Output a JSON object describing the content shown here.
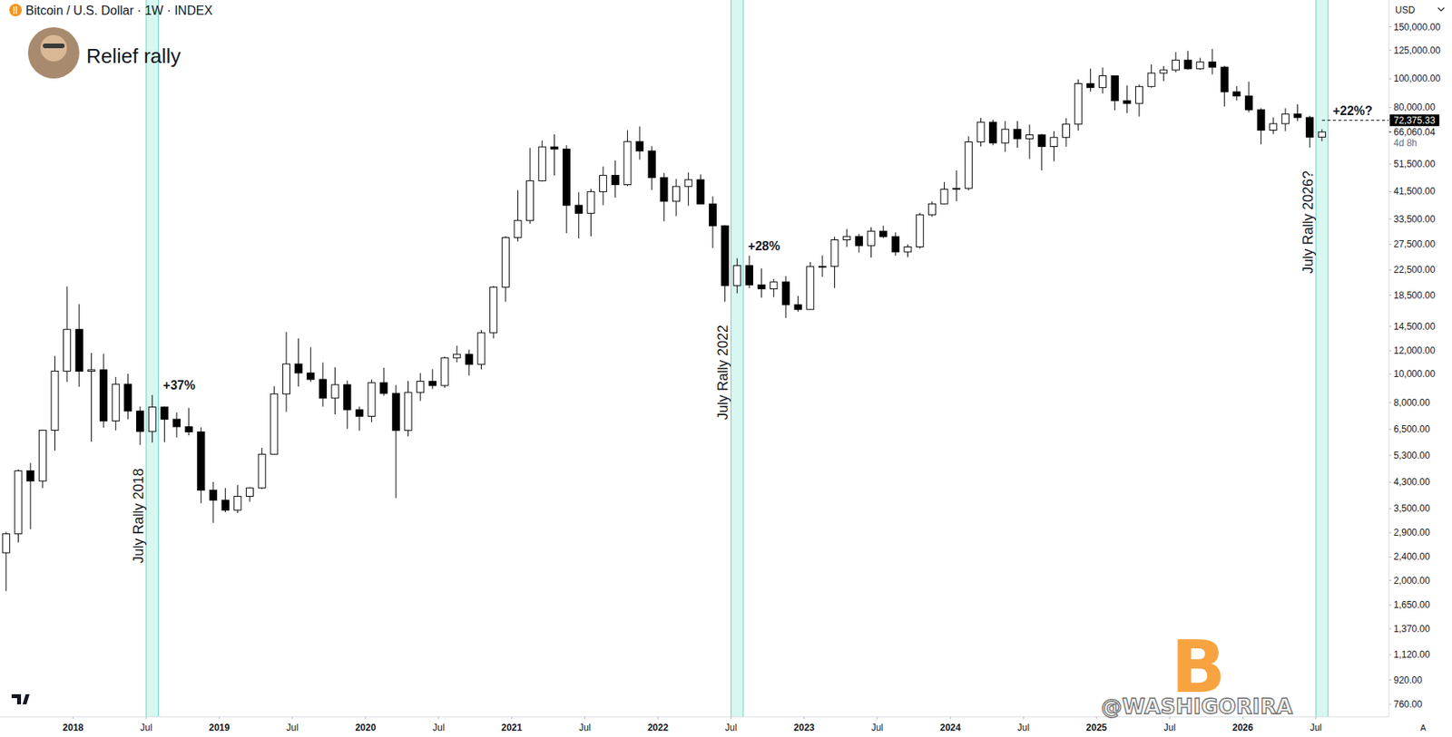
{
  "chart_data": {
    "type": "candlestick",
    "symbol": "Bitcoin / U.S. Dollar · 1W · INDEX",
    "title": "Relief rally",
    "currency": "USD",
    "watermark": "@WASHIGORIRA",
    "logo": "B",
    "scale_mode": "A",
    "log": "y",
    "grid": false,
    "x": [
      "2017-07",
      "2017-08",
      "2017-09",
      "2017-10",
      "2017-11",
      "2017-12",
      "2018-01",
      "2018-02",
      "2018-03",
      "2018-04",
      "2018-05",
      "2018-06",
      "2018-07",
      "2018-08",
      "2018-09",
      "2018-10",
      "2018-11",
      "2018-12",
      "2019-01",
      "2019-02",
      "2019-03",
      "2019-04",
      "2019-05",
      "2019-06",
      "2019-07",
      "2019-08",
      "2019-09",
      "2019-10",
      "2019-11",
      "2019-12",
      "2020-01",
      "2020-02",
      "2020-03",
      "2020-04",
      "2020-05",
      "2020-06",
      "2020-07",
      "2020-08",
      "2020-09",
      "2020-10",
      "2020-11",
      "2020-12",
      "2021-01",
      "2021-02",
      "2021-03",
      "2021-04",
      "2021-05",
      "2021-06",
      "2021-07",
      "2021-08",
      "2021-09",
      "2021-10",
      "2021-11",
      "2021-12",
      "2022-01",
      "2022-02",
      "2022-03",
      "2022-04",
      "2022-05",
      "2022-06",
      "2022-07",
      "2022-08",
      "2022-09",
      "2022-10",
      "2022-11",
      "2022-12",
      "2023-01",
      "2023-02",
      "2023-03",
      "2023-04",
      "2023-05",
      "2023-06",
      "2023-07",
      "2023-08",
      "2023-09",
      "2023-10",
      "2023-11",
      "2023-12",
      "2024-01",
      "2024-02",
      "2024-03",
      "2024-04",
      "2024-05",
      "2024-06",
      "2024-07",
      "2024-08",
      "2024-09",
      "2024-10",
      "2024-11",
      "2024-12",
      "2025-01",
      "2025-02",
      "2025-03",
      "2025-04",
      "2025-05",
      "2025-06",
      "2025-07",
      "2025-08",
      "2025-09",
      "2025-10",
      "2025-11",
      "2025-12",
      "2026-01",
      "2026-02",
      "2026-03",
      "2026-04",
      "2026-05",
      "2026-06",
      "2026-07"
    ],
    "open": [
      2480,
      2875,
      4700,
      4340,
      6450,
      10230,
      14160,
      10220,
      10330,
      6940,
      9240,
      7490,
      6390,
      7730,
      7030,
      6630,
      6370,
      4040,
      3740,
      3460,
      3850,
      4110,
      5350,
      8560,
      10820,
      10080,
      9590,
      8290,
      9200,
      7570,
      7190,
      9350,
      8600,
      6440,
      8660,
      9450,
      9140,
      11350,
      11660,
      10780,
      13800,
      19700,
      28990,
      33110,
      45140,
      58800,
      57800,
      37300,
      35040,
      41460,
      47100,
      43800,
      61300,
      57000,
      46300,
      38480,
      43190,
      45540,
      37700,
      31800,
      19940,
      23300,
      20050,
      19430,
      20500,
      17170,
      16550,
      23130,
      23150,
      28480,
      29250,
      27220,
      30480,
      29230,
      25930,
      26970,
      34650,
      37720,
      42280,
      42580,
      61130,
      71330,
      60640,
      67490,
      62680,
      64630,
      58970,
      63330,
      70220,
      96400,
      93430,
      102400,
      84350,
      82550,
      94200,
      104600,
      107150,
      115750,
      108250,
      114050,
      109600,
      90400,
      87500,
      78600,
      67000,
      70500,
      76000,
      74000,
      63500
    ],
    "high": [
      2920,
      4750,
      5000,
      6470,
      11520,
      19800,
      17250,
      11790,
      11710,
      9770,
      10020,
      7760,
      8490,
      7770,
      7410,
      7680,
      6600,
      4310,
      4110,
      4210,
      4140,
      5620,
      9090,
      13880,
      13200,
      12330,
      10940,
      10540,
      9500,
      7760,
      9580,
      10500,
      9180,
      9470,
      10080,
      10390,
      11450,
      12480,
      12090,
      14100,
      19860,
      29300,
      41950,
      58350,
      61790,
      64860,
      59600,
      41300,
      42400,
      50500,
      52920,
      67000,
      69000,
      59100,
      47990,
      45800,
      48200,
      47450,
      40000,
      31950,
      24670,
      25200,
      22800,
      21000,
      21470,
      18390,
      23960,
      25250,
      29190,
      31000,
      29820,
      31430,
      31800,
      30200,
      27480,
      35200,
      38430,
      44700,
      48970,
      63900,
      73750,
      72750,
      71950,
      72000,
      70000,
      65100,
      66500,
      73600,
      99650,
      108300,
      109350,
      102700,
      95000,
      95750,
      111900,
      110500,
      123200,
      124450,
      117900,
      126200,
      110600,
      94500,
      97900,
      79500,
      74000,
      79500,
      82000,
      75000,
      67500
    ],
    "low": [
      1840,
      2690,
      2980,
      4110,
      5500,
      9400,
      9050,
      5900,
      6580,
      6440,
      7030,
      5750,
      5860,
      5880,
      6100,
      6200,
      3650,
      3130,
      3400,
      3380,
      3690,
      4080,
      5330,
      7450,
      9070,
      9400,
      7750,
      7300,
      6520,
      6430,
      6870,
      8450,
      3800,
      6150,
      8110,
      8900,
      8990,
      10950,
      9880,
      10370,
      13200,
      17580,
      28130,
      32300,
      44950,
      47050,
      30000,
      28800,
      29280,
      37350,
      39600,
      43300,
      53250,
      42000,
      32930,
      34300,
      37150,
      37580,
      26700,
      17600,
      18780,
      19540,
      18150,
      18200,
      15480,
      16260,
      16500,
      21350,
      19550,
      26950,
      25810,
      24800,
      28860,
      25170,
      24900,
      26560,
      34100,
      37630,
      38500,
      41880,
      59000,
      59600,
      56550,
      58400,
      53500,
      49000,
      52550,
      58900,
      66800,
      90500,
      89200,
      78200,
      76600,
      74500,
      93400,
      98200,
      105100,
      107300,
      107300,
      103500,
      80600,
      84400,
      77000,
      60000,
      65000,
      66500,
      72000,
      58500,
      61500
    ],
    "close": [
      2875,
      4700,
      4340,
      6450,
      10230,
      14160,
      10220,
      10330,
      6940,
      9240,
      7490,
      6390,
      7730,
      7030,
      6630,
      6370,
      4040,
      3740,
      3460,
      3850,
      4110,
      5350,
      8560,
      10820,
      10080,
      9590,
      8290,
      9200,
      7570,
      7190,
      9350,
      8600,
      6440,
      8660,
      9450,
      9140,
      11350,
      11660,
      10780,
      13800,
      19700,
      28990,
      33110,
      45140,
      58800,
      57800,
      37300,
      35040,
      41460,
      47100,
      43800,
      61300,
      57000,
      46300,
      38480,
      43190,
      45540,
      37700,
      31800,
      19940,
      23300,
      20050,
      19430,
      20500,
      17170,
      16550,
      23130,
      23150,
      28480,
      29250,
      27220,
      30480,
      29230,
      25930,
      26970,
      34650,
      37720,
      42280,
      42580,
      61130,
      71330,
      60640,
      67490,
      62680,
      64630,
      58970,
      63330,
      70220,
      96400,
      93430,
      102400,
      84350,
      82550,
      94200,
      104600,
      107150,
      115750,
      108250,
      114050,
      109600,
      90400,
      87500,
      78600,
      67000,
      70500,
      76000,
      74000,
      63500,
      66060.04
    ],
    "xlim": [
      "2017-07",
      "2027-01"
    ],
    "xticks": [
      {
        "value": "2018-01",
        "label": "2018"
      },
      {
        "value": "2018-07",
        "label": "Jul"
      },
      {
        "value": "2019-01",
        "label": "2019"
      },
      {
        "value": "2019-07",
        "label": "Jul"
      },
      {
        "value": "2020-01",
        "label": "2020"
      },
      {
        "value": "2020-07",
        "label": "Jul"
      },
      {
        "value": "2021-01",
        "label": "2021"
      },
      {
        "value": "2021-07",
        "label": "Jul"
      },
      {
        "value": "2022-01",
        "label": "2022"
      },
      {
        "value": "2022-07",
        "label": "Jul"
      },
      {
        "value": "2023-01",
        "label": "2023"
      },
      {
        "value": "2023-07",
        "label": "Jul"
      },
      {
        "value": "2024-01",
        "label": "2024"
      },
      {
        "value": "2024-07",
        "label": "Jul"
      },
      {
        "value": "2025-01",
        "label": "2025"
      },
      {
        "value": "2025-07",
        "label": "Jul"
      },
      {
        "value": "2026-01",
        "label": "2026"
      },
      {
        "value": "2026-07",
        "label": "Jul"
      }
    ],
    "ylim": [
      690,
      185000
    ],
    "yticks": [
      {
        "value": 150000,
        "label": "150,000.00"
      },
      {
        "value": 125000,
        "label": "125,000.00"
      },
      {
        "value": 100000,
        "label": "100,000.00"
      },
      {
        "value": 80000,
        "label": "80,000.00"
      },
      {
        "value": 51500,
        "label": "51,500.00"
      },
      {
        "value": 41500,
        "label": "41,500.00"
      },
      {
        "value": 33500,
        "label": "33,500.00"
      },
      {
        "value": 27500,
        "label": "27,500.00"
      },
      {
        "value": 22500,
        "label": "22,500.00"
      },
      {
        "value": 18500,
        "label": "18,500.00"
      },
      {
        "value": 14500,
        "label": "14,500.00"
      },
      {
        "value": 12000,
        "label": "12,000.00"
      },
      {
        "value": 10000,
        "label": "10,000.00"
      },
      {
        "value": 8000,
        "label": "8,000.00"
      },
      {
        "value": 6500,
        "label": "6,500.00"
      },
      {
        "value": 5300,
        "label": "5,300.00"
      },
      {
        "value": 4300,
        "label": "4,300.00"
      },
      {
        "value": 3500,
        "label": "3,500.00"
      },
      {
        "value": 2900,
        "label": "2,900.00"
      },
      {
        "value": 2400,
        "label": "2,400.00"
      },
      {
        "value": 2000,
        "label": "2,000.00"
      },
      {
        "value": 1650,
        "label": "1,650.00"
      },
      {
        "value": 1370,
        "label": "1,370.00"
      },
      {
        "value": 1120,
        "label": "1,120.00"
      },
      {
        "value": 920,
        "label": "920.00"
      },
      {
        "value": 760,
        "label": "760.00"
      }
    ],
    "annotations": [
      {
        "x": "2018-07",
        "label": "July Rally 2018",
        "text": "+37%"
      },
      {
        "x": "2022-07",
        "label": "July Rally 2022",
        "text": "+28%"
      },
      {
        "x": "2026-07",
        "label": "July Rally 2026?",
        "text": "+22%?"
      }
    ],
    "target_line": {
      "x": "2026-07",
      "value": 72375.33,
      "label": "72,375.33"
    },
    "last_price": {
      "value": 66060.04,
      "label": "66,060.04",
      "countdown": "4d 8h"
    }
  }
}
